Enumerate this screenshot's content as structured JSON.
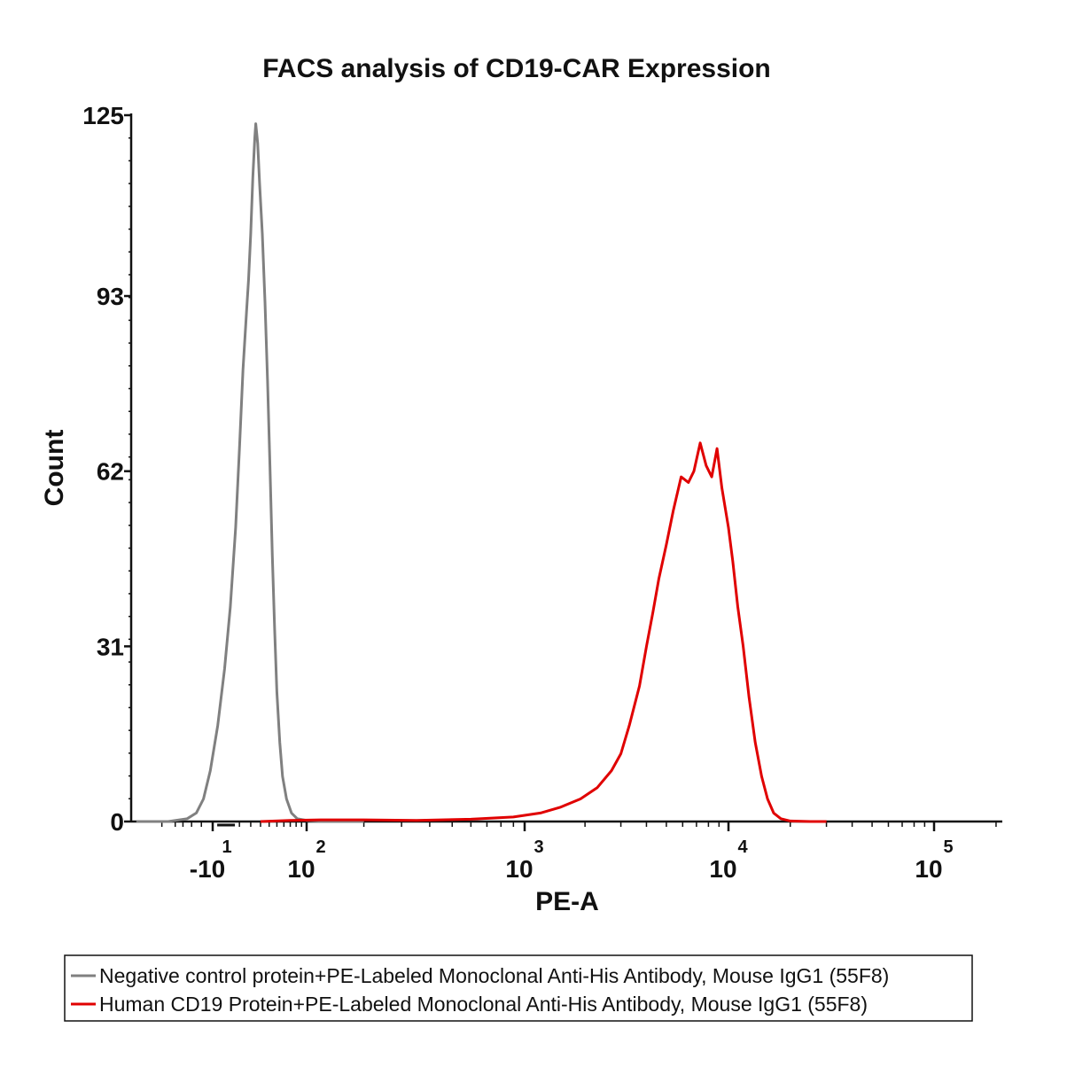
{
  "chart_data": {
    "type": "line",
    "title": "FACS analysis of CD19-CAR Expression",
    "xlabel": "PE-A",
    "ylabel": "Count",
    "ylim": [
      0,
      125
    ],
    "xscale": "biexponential",
    "ytick_labels": [
      "0",
      "31",
      "62",
      "93",
      "125"
    ],
    "ytick_values": [
      0,
      31,
      62,
      93,
      125
    ],
    "xtick_labels": [
      {
        "base": "-10",
        "exp": "1",
        "value": -10
      },
      {
        "base": "10",
        "exp": "2",
        "value": 100
      },
      {
        "base": "10",
        "exp": "3",
        "value": 1000
      },
      {
        "base": "10",
        "exp": "4",
        "value": 10000
      },
      {
        "base": "10",
        "exp": "5",
        "value": 100000
      }
    ],
    "grid": false,
    "legend_position": "bottom",
    "series": [
      {
        "name": "Negative control protein+PE-Labeled Monoclonal Anti-His Antibody, Mouse IgG1 (55F8)",
        "color": "#808080",
        "points": [
          [
            -120,
            0
          ],
          [
            -60,
            0
          ],
          [
            -35,
            0.5
          ],
          [
            -25,
            1.5
          ],
          [
            -18,
            4
          ],
          [
            -12,
            9
          ],
          [
            -6,
            17
          ],
          [
            -1,
            27
          ],
          [
            3,
            38
          ],
          [
            7,
            52
          ],
          [
            10,
            66
          ],
          [
            13,
            80
          ],
          [
            16,
            90
          ],
          [
            18,
            96
          ],
          [
            20,
            104
          ],
          [
            22,
            114
          ],
          [
            24,
            121
          ],
          [
            25,
            123.5
          ],
          [
            27,
            120
          ],
          [
            29,
            113
          ],
          [
            32,
            104
          ],
          [
            35,
            92
          ],
          [
            38,
            78
          ],
          [
            41,
            63
          ],
          [
            44,
            47
          ],
          [
            47,
            34
          ],
          [
            50,
            23
          ],
          [
            54,
            14
          ],
          [
            58,
            8
          ],
          [
            64,
            4
          ],
          [
            72,
            1.5
          ],
          [
            82,
            0.5
          ],
          [
            100,
            0.2
          ],
          [
            130,
            0
          ],
          [
            200,
            0
          ]
        ]
      },
      {
        "name": "Human CD19 Protein+PE-Labeled Monoclonal Anti-His Antibody, Mouse IgG1 (55F8)",
        "color": "#e00000",
        "points": [
          [
            30,
            0
          ],
          [
            70,
            0.2
          ],
          [
            120,
            0.3
          ],
          [
            200,
            0.3
          ],
          [
            350,
            0.2
          ],
          [
            600,
            0.4
          ],
          [
            900,
            0.8
          ],
          [
            1200,
            1.5
          ],
          [
            1500,
            2.5
          ],
          [
            1900,
            4
          ],
          [
            2300,
            6
          ],
          [
            2700,
            9
          ],
          [
            3000,
            12
          ],
          [
            3300,
            17
          ],
          [
            3700,
            24
          ],
          [
            4000,
            31
          ],
          [
            4300,
            37
          ],
          [
            4600,
            43
          ],
          [
            5000,
            49
          ],
          [
            5400,
            55
          ],
          [
            5900,
            61
          ],
          [
            6400,
            60
          ],
          [
            6800,
            62
          ],
          [
            7300,
            67
          ],
          [
            7800,
            63
          ],
          [
            8300,
            61
          ],
          [
            8800,
            66
          ],
          [
            9300,
            59
          ],
          [
            10000,
            52
          ],
          [
            10500,
            46
          ],
          [
            11100,
            38
          ],
          [
            11800,
            31
          ],
          [
            12600,
            22
          ],
          [
            13500,
            14
          ],
          [
            14500,
            8
          ],
          [
            15500,
            4
          ],
          [
            16600,
            1.5
          ],
          [
            18000,
            0.5
          ],
          [
            20000,
            0.1
          ],
          [
            25000,
            0
          ],
          [
            30000,
            0
          ]
        ]
      }
    ]
  }
}
